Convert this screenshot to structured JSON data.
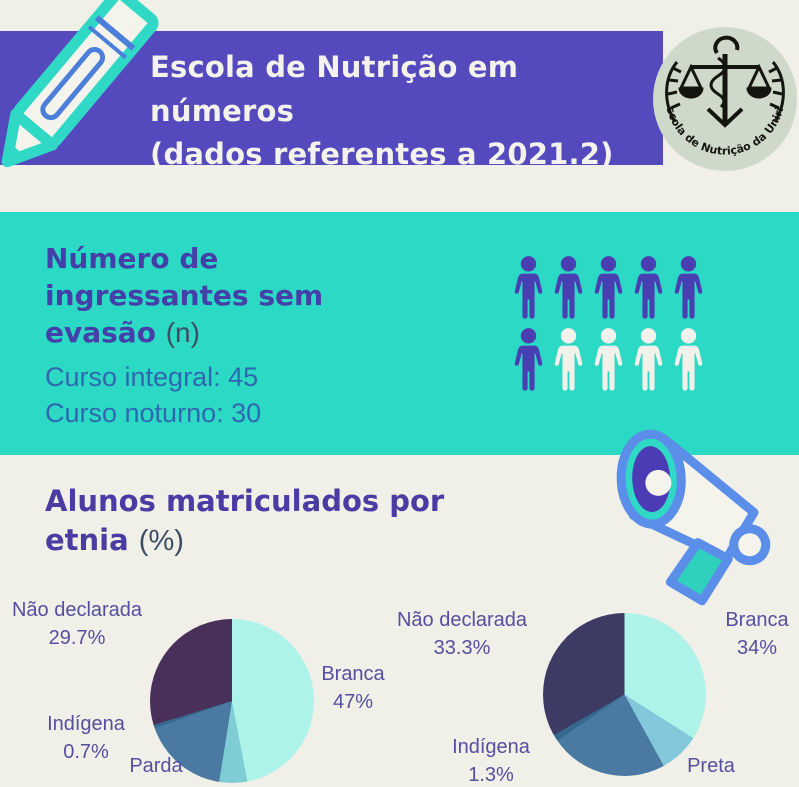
{
  "header": {
    "title_line1": "Escola de Nutrição em números",
    "title_line2": "(dados referentes a 2021.2)",
    "logo_text": "Escola de Nutrição da Unirio"
  },
  "ingressantes": {
    "heading_line1": "Número de",
    "heading_line2": "ingressantes sem",
    "heading_line3": "evasão",
    "heading_suffix": "(n)",
    "curso_integral": "Curso integral: 45",
    "curso_noturno": "Curso noturno: 30"
  },
  "etnia": {
    "heading_line1": "Alunos matriculados por",
    "heading_line2": "etnia",
    "heading_suffix": "(%)"
  },
  "palette": {
    "background": "#f0efe8",
    "banner_purple": "#5449bd",
    "teal_band": "#2bd9c4",
    "heading_indigo": "#453fa9",
    "body_blue": "#2e68b0",
    "label_purple": "#564f9f",
    "person_filled": "#4a3fb2",
    "person_light": "#f2f1ea"
  },
  "chart_data": [
    {
      "type": "pictogram",
      "title": "Número de ingressantes sem evasão (n)",
      "items": [
        {
          "label": "Curso integral",
          "value": 45
        },
        {
          "label": "Curso noturno",
          "value": 30
        }
      ],
      "icons_total": 10,
      "icons_filled": 6,
      "icons_per_row": 5,
      "filled_color": "#4a3fb2",
      "light_color": "#f2f1ea"
    },
    {
      "type": "pie",
      "title": "Alunos matriculados por etnia (%)",
      "position": "left",
      "slices": [
        {
          "label": "Branca",
          "value": 47,
          "value_label": "47%",
          "color": "#aef3ea"
        },
        {
          "label": "",
          "value": 5.5,
          "value_label": "",
          "color": "#7ecdd4"
        },
        {
          "label": "Parda",
          "value": 17.1,
          "value_label": "",
          "color": "#4a7aa2"
        },
        {
          "label": "Indígena",
          "value": 0.7,
          "value_label": "0.7%",
          "color": "#35688d"
        },
        {
          "label": "Não declarada",
          "value": 29.7,
          "value_label": "29.7%",
          "color": "#49305a"
        }
      ]
    },
    {
      "type": "pie",
      "title": "Alunos matriculados por etnia (%)",
      "position": "right",
      "slices": [
        {
          "label": "Branca",
          "value": 34,
          "value_label": "34%",
          "color": "#aef3ea"
        },
        {
          "label": "Preta",
          "value": 8,
          "value_label": "",
          "color": "#82c7da"
        },
        {
          "label": "",
          "value": 23.4,
          "value_label": "",
          "color": "#4a7aa2"
        },
        {
          "label": "Indígena",
          "value": 1.3,
          "value_label": "1.3%",
          "color": "#35688d"
        },
        {
          "label": "Não declarada",
          "value": 33.3,
          "value_label": "33.3%",
          "color": "#3d3a63"
        }
      ]
    }
  ]
}
